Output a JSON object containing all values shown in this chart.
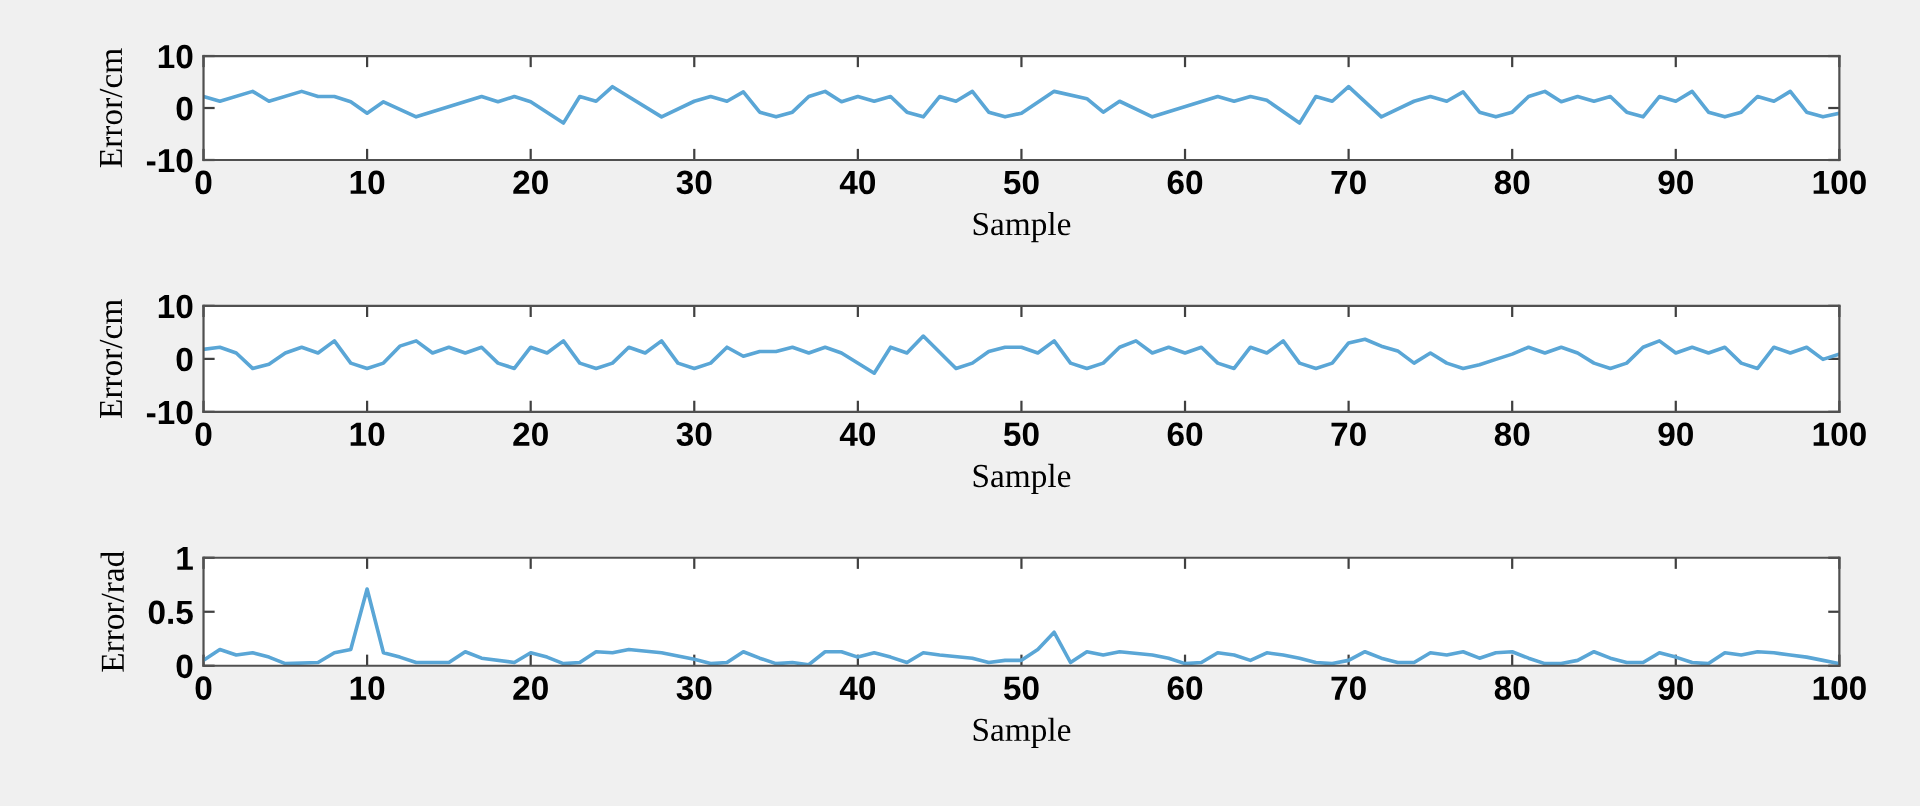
{
  "chart_data": [
    {
      "type": "line",
      "xlabel": "Sample",
      "ylabel": "Error/cm",
      "xlim": [
        0,
        100
      ],
      "xticks": [
        0,
        10,
        20,
        30,
        40,
        50,
        60,
        70,
        80,
        90,
        100
      ],
      "ylim": [
        -10,
        10
      ],
      "yticks": [
        -10,
        0,
        10
      ],
      "series": [
        {
          "color": "#5aa6d6",
          "x": [
            0,
            1,
            3,
            4,
            6,
            7,
            8,
            9,
            10,
            11,
            13,
            17,
            18,
            19,
            20,
            22,
            23,
            24,
            25,
            28,
            30,
            31,
            32,
            33,
            34,
            35,
            36,
            37,
            38,
            39,
            40,
            41,
            42,
            43,
            44,
            45,
            46,
            47,
            48,
            49,
            50,
            52,
            54,
            55,
            56,
            58,
            62,
            63,
            64,
            65,
            67,
            68,
            69,
            70,
            72,
            74,
            75,
            76,
            77,
            78,
            79,
            80,
            81,
            82,
            83,
            84,
            85,
            86,
            87,
            88,
            89,
            90,
            91,
            92,
            93,
            94,
            95,
            96,
            97,
            98,
            99,
            100
          ],
          "values": [
            2.2,
            1.3,
            3.2,
            1.3,
            3.2,
            2.2,
            2.2,
            1.2,
            -1,
            1.2,
            -1.7,
            2.2,
            1.2,
            2.2,
            1.2,
            -2.9,
            2.2,
            1.3,
            4.1,
            -1.7,
            1.3,
            2.2,
            1.3,
            3.1,
            -0.8,
            -1.7,
            -0.8,
            2.2,
            3.2,
            1.2,
            2.2,
            1.3,
            2.2,
            -0.8,
            -1.7,
            2.2,
            1.3,
            3.2,
            -0.8,
            -1.7,
            -1,
            3.2,
            1.8,
            -0.8,
            1.3,
            -1.7,
            2.2,
            1.3,
            2.2,
            1.5,
            -2.9,
            2.2,
            1.3,
            4.1,
            -1.7,
            1.3,
            2.2,
            1.3,
            3.1,
            -0.8,
            -1.7,
            -0.8,
            2.2,
            3.2,
            1.2,
            2.2,
            1.3,
            2.2,
            -0.8,
            -1.7,
            2.2,
            1.3,
            3.2,
            -0.8,
            -1.7,
            -0.8,
            2.2,
            1.3,
            3.2,
            -0.8,
            -1.7,
            -1
          ]
        }
      ]
    },
    {
      "type": "line",
      "xlabel": "Sample",
      "ylabel": "Error/cm",
      "xlim": [
        0,
        100
      ],
      "xticks": [
        0,
        10,
        20,
        30,
        40,
        50,
        60,
        70,
        80,
        90,
        100
      ],
      "ylim": [
        -10,
        10
      ],
      "yticks": [
        -10,
        0,
        10
      ],
      "series": [
        {
          "color": "#5aa6d6",
          "x": [
            0,
            1,
            2,
            3,
            4,
            5,
            6,
            7,
            8,
            9,
            10,
            11,
            12,
            13,
            14,
            15,
            16,
            17,
            18,
            19,
            20,
            21,
            22,
            23,
            24,
            25,
            26,
            27,
            28,
            29,
            30,
            31,
            32,
            33,
            34,
            35,
            36,
            37,
            38,
            39,
            41,
            42,
            43,
            44,
            46,
            47,
            48,
            49,
            50,
            51,
            52,
            53,
            54,
            55,
            56,
            57,
            58,
            59,
            60,
            61,
            62,
            63,
            64,
            65,
            66,
            67,
            68,
            69,
            70,
            71,
            72,
            73,
            74,
            75,
            76,
            77,
            78,
            79,
            80,
            81,
            82,
            83,
            84,
            85,
            86,
            87,
            88,
            89,
            90,
            91,
            92,
            93,
            94,
            95,
            96,
            97,
            98,
            99,
            100
          ],
          "values": [
            1.8,
            2.2,
            1.1,
            -1.8,
            -1,
            1.1,
            2.2,
            1.1,
            3.4,
            -0.8,
            -1.8,
            -0.8,
            2.4,
            3.4,
            1.1,
            2.2,
            1.1,
            2.2,
            -0.8,
            -1.8,
            2.2,
            1.1,
            3.4,
            -0.8,
            -1.8,
            -0.8,
            2.2,
            1.1,
            3.4,
            -0.8,
            -1.8,
            -0.8,
            2.2,
            0.5,
            1.4,
            1.4,
            2.2,
            1.1,
            2.2,
            1.1,
            -2.7,
            2.2,
            1.1,
            4.3,
            -1.8,
            -0.8,
            1.4,
            2.2,
            2.2,
            1.1,
            3.4,
            -0.8,
            -1.8,
            -0.8,
            2.2,
            3.4,
            1.1,
            2.2,
            1.1,
            2.2,
            -0.8,
            -1.8,
            2.2,
            1.1,
            3.4,
            -0.8,
            -1.8,
            -0.8,
            3,
            3.7,
            2.4,
            1.5,
            -0.8,
            1.1,
            -0.8,
            -1.8,
            -1.1,
            -0.1,
            0.9,
            2.2,
            1.1,
            2.2,
            1.1,
            -0.8,
            -1.8,
            -0.8,
            2.2,
            3.4,
            1.1,
            2.2,
            1.1,
            2.2,
            -0.8,
            -1.8,
            2.2,
            1.1,
            2.2,
            -0.1,
            0.9
          ]
        }
      ]
    },
    {
      "type": "line",
      "xlabel": "Sample",
      "ylabel": "Error/rad",
      "xlim": [
        0,
        100
      ],
      "xticks": [
        0,
        10,
        20,
        30,
        40,
        50,
        60,
        70,
        80,
        90,
        100
      ],
      "ylim": [
        0,
        1
      ],
      "yticks": [
        0,
        0.5,
        1
      ],
      "series": [
        {
          "color": "#5aa6d6",
          "x": [
            0,
            1,
            2,
            3,
            4,
            5,
            7,
            8,
            9,
            10,
            11,
            12,
            13,
            15,
            16,
            17,
            19,
            20,
            21,
            22,
            23,
            24,
            25,
            26,
            28,
            30,
            31,
            32,
            33,
            34,
            35,
            36,
            37,
            38,
            39,
            40,
            41,
            42,
            43,
            44,
            45,
            47,
            48,
            49,
            50,
            51,
            52,
            53,
            54,
            55,
            56,
            58,
            59,
            60,
            61,
            62,
            63,
            64,
            65,
            66,
            67,
            68,
            69,
            70,
            71,
            72,
            73,
            74,
            75,
            76,
            77,
            78,
            79,
            80,
            81,
            82,
            83,
            84,
            85,
            86,
            87,
            88,
            89,
            90,
            91,
            92,
            93,
            94,
            95,
            96,
            97,
            98,
            99,
            100
          ],
          "values": [
            0.05,
            0.15,
            0.1,
            0.12,
            0.08,
            0.02,
            0.03,
            0.12,
            0.15,
            0.71,
            0.12,
            0.08,
            0.03,
            0.03,
            0.13,
            0.07,
            0.03,
            0.12,
            0.08,
            0.02,
            0.03,
            0.13,
            0.12,
            0.15,
            0.12,
            0.06,
            0.02,
            0.03,
            0.13,
            0.07,
            0.02,
            0.03,
            0.01,
            0.13,
            0.13,
            0.08,
            0.12,
            0.08,
            0.03,
            0.12,
            0.1,
            0.07,
            0.03,
            0.05,
            0.05,
            0.15,
            0.31,
            0.03,
            0.13,
            0.1,
            0.13,
            0.1,
            0.07,
            0.02,
            0.03,
            0.12,
            0.1,
            0.05,
            0.12,
            0.1,
            0.07,
            0.03,
            0.02,
            0.05,
            0.13,
            0.07,
            0.03,
            0.03,
            0.12,
            0.1,
            0.13,
            0.07,
            0.12,
            0.13,
            0.07,
            0.02,
            0.02,
            0.05,
            0.13,
            0.07,
            0.03,
            0.03,
            0.12,
            0.08,
            0.03,
            0.02,
            0.12,
            0.1,
            0.13,
            0.12,
            0.1,
            0.08,
            0.05,
            0.02
          ]
        }
      ]
    }
  ]
}
